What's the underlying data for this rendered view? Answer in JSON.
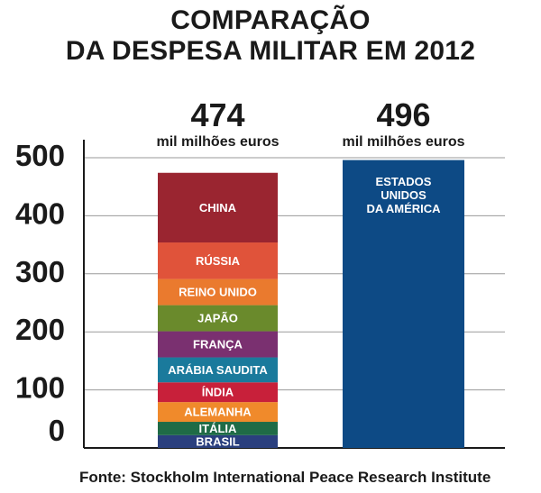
{
  "title_line1": "COMPARAÇÃO",
  "title_line2": "DA DESPESA MILITAR EM 2012",
  "source": "Fonte: Stockholm International Peace Research Institute",
  "chart_data": {
    "type": "bar",
    "subtype": "stacked",
    "title": "COMPARAÇÃO DA DESPESA MILITAR EM 2012",
    "ylim": [
      0,
      500
    ],
    "yticks": [
      0,
      100,
      200,
      300,
      400,
      500
    ],
    "grid": true,
    "bars": [
      {
        "total_label": "474",
        "unit_label": "mil milhões euros",
        "total": 474,
        "segments": [
          {
            "name": "BRASIL",
            "value": 22,
            "color": "#2a3f7e"
          },
          {
            "name": "ITÁLIA",
            "value": 23,
            "color": "#1f6b46"
          },
          {
            "name": "ALEMANHA",
            "value": 34,
            "color": "#f08a2b"
          },
          {
            "name": "ÍNDIA",
            "value": 34,
            "color": "#c8203a"
          },
          {
            "name": "ARÁBIA SAUDITA",
            "value": 43,
            "color": "#1a7a9c"
          },
          {
            "name": "FRANÇA",
            "value": 45,
            "color": "#7a3070"
          },
          {
            "name": "JAPÃO",
            "value": 45,
            "color": "#6a8a2c"
          },
          {
            "name": "REINO UNIDO",
            "value": 45,
            "color": "#ea7a2e"
          },
          {
            "name": "RÚSSIA",
            "value": 63,
            "color": "#e0533a"
          },
          {
            "name": "CHINA",
            "value": 120,
            "color": "#9a2530"
          }
        ]
      },
      {
        "total_label": "496",
        "unit_label": "mil milhões euros",
        "total": 496,
        "segments": [
          {
            "name": "ESTADOS\nUNIDOS\nDA AMÉRICA",
            "value": 496,
            "color": "#0d4a85"
          }
        ]
      }
    ]
  }
}
